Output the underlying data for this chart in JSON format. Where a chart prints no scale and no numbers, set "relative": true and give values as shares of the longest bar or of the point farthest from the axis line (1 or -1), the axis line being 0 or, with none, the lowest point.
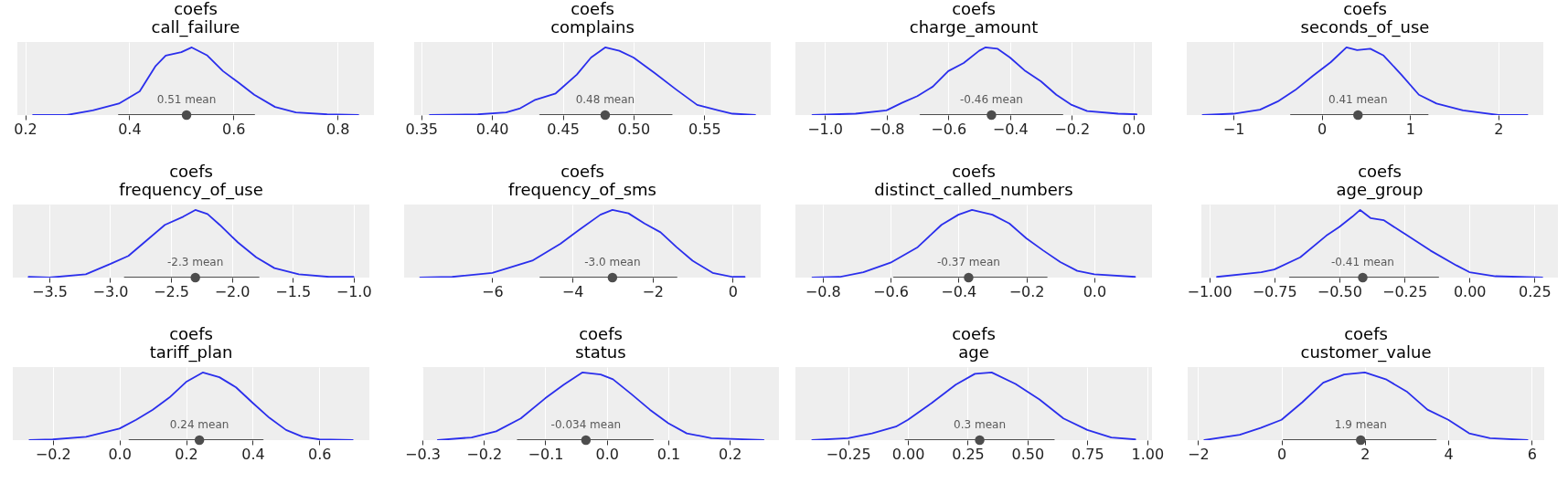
{
  "chart_data": [
    {
      "type": "line",
      "title": "coefs",
      "subtitle": "call_failure",
      "relative": true,
      "grid": "x",
      "tick_labels": "x",
      "xlim": [
        0.185,
        0.87
      ],
      "xticks": [
        0.2,
        0.4,
        0.6,
        0.8
      ],
      "series": [
        {
          "color": "#2a2eec",
          "x": [
            0.215,
            0.28,
            0.33,
            0.38,
            0.42,
            0.45,
            0.47,
            0.5,
            0.52,
            0.55,
            0.58,
            0.61,
            0.64,
            0.68,
            0.72,
            0.78,
            0.84
          ],
          "values": [
            0,
            0,
            0.07,
            0.17,
            0.35,
            0.72,
            0.88,
            0.93,
            1,
            0.88,
            0.65,
            0.48,
            0.3,
            0.12,
            0.04,
            0.01,
            0
          ]
        },
        {
          "type": "line",
          "color": "#4d4d4d",
          "x": [
            0.38,
            0.64
          ],
          "values": [
            0,
            0
          ]
        },
        {
          "type": "scatter",
          "marker": "circle",
          "color": "#4d4d4d",
          "x": [
            0.51
          ],
          "values": [
            0
          ]
        }
      ],
      "annotations": [
        {
          "text": "0.51 mean",
          "x": 0.51,
          "y": 0
        }
      ]
    },
    {
      "type": "line",
      "title": "coefs",
      "subtitle": "complains",
      "relative": true,
      "grid": "x",
      "tick_labels": "x",
      "xlim": [
        0.345,
        0.597
      ],
      "xticks": [
        {
          "value": 0.35,
          "label": "0.35"
        },
        {
          "value": 0.4,
          "label": "0.40"
        },
        {
          "value": 0.45,
          "label": "0.45"
        },
        {
          "value": 0.5,
          "label": "0.50"
        },
        {
          "value": 0.55,
          "label": "0.55"
        }
      ],
      "series": [
        {
          "color": "#2a2eec",
          "x": [
            0.356,
            0.39,
            0.41,
            0.42,
            0.43,
            0.445,
            0.46,
            0.47,
            0.48,
            0.49,
            0.5,
            0.515,
            0.53,
            0.545,
            0.56,
            0.57,
            0.586
          ],
          "values": [
            0,
            0.01,
            0.04,
            0.1,
            0.22,
            0.32,
            0.6,
            0.85,
            1,
            0.95,
            0.85,
            0.62,
            0.38,
            0.15,
            0.07,
            0.02,
            0
          ]
        },
        {
          "type": "line",
          "color": "#4d4d4d",
          "x": [
            0.434,
            0.527
          ],
          "values": [
            0,
            0
          ]
        },
        {
          "type": "scatter",
          "marker": "circle",
          "color": "#4d4d4d",
          "x": [
            0.48
          ],
          "values": [
            0
          ]
        }
      ],
      "annotations": [
        {
          "text": "0.48 mean",
          "x": 0.48,
          "y": 0
        }
      ]
    },
    {
      "type": "line",
      "title": "coefs",
      "subtitle": "charge_amount",
      "relative": true,
      "grid": "x",
      "tick_labels": "x",
      "xlim": [
        -1.095,
        0.06
      ],
      "xticks": [
        {
          "value": -1,
          "label": "−1.0"
        },
        {
          "value": -0.8,
          "label": "−0.8"
        },
        {
          "value": -0.6,
          "label": "−0.6"
        },
        {
          "value": -0.4,
          "label": "−0.4"
        },
        {
          "value": -0.2,
          "label": "−0.2"
        },
        {
          "value": 0,
          "label": "0.0"
        }
      ],
      "series": [
        {
          "color": "#2a2eec",
          "x": [
            -1.04,
            -0.9,
            -0.8,
            -0.75,
            -0.7,
            -0.65,
            -0.6,
            -0.55,
            -0.5,
            -0.48,
            -0.44,
            -0.4,
            -0.35,
            -0.3,
            -0.25,
            -0.2,
            -0.15,
            -0.05,
            0.01
          ],
          "values": [
            0,
            0.02,
            0.07,
            0.18,
            0.28,
            0.42,
            0.65,
            0.77,
            0.95,
            1,
            0.98,
            0.85,
            0.65,
            0.5,
            0.3,
            0.15,
            0.06,
            0.02,
            0.01
          ]
        },
        {
          "type": "line",
          "color": "#4d4d4d",
          "x": [
            -0.69,
            -0.23
          ],
          "values": [
            0,
            0
          ]
        },
        {
          "type": "scatter",
          "marker": "circle",
          "color": "#4d4d4d",
          "x": [
            -0.46
          ],
          "values": [
            0
          ]
        }
      ],
      "annotations": [
        {
          "text": "-0.46 mean",
          "x": -0.46,
          "y": 0
        }
      ]
    },
    {
      "type": "line",
      "title": "coefs",
      "subtitle": "seconds_of_use",
      "relative": true,
      "grid": "x",
      "tick_labels": "x",
      "xlim": [
        -1.53,
        2.51
      ],
      "xticks": [
        {
          "value": -1,
          "label": "−1"
        },
        0,
        1,
        2
      ],
      "series": [
        {
          "color": "#2a2eec",
          "x": [
            -1.35,
            -1,
            -0.7,
            -0.5,
            -0.3,
            -0.1,
            0.1,
            0.28,
            0.4,
            0.55,
            0.7,
            0.9,
            1.1,
            1.3,
            1.6,
            2,
            2.33
          ],
          "values": [
            0,
            0.02,
            0.08,
            0.2,
            0.37,
            0.58,
            0.78,
            1,
            0.96,
            0.98,
            0.88,
            0.6,
            0.3,
            0.17,
            0.07,
            0,
            0
          ]
        },
        {
          "type": "line",
          "color": "#4d4d4d",
          "x": [
            -0.35,
            1.2
          ],
          "values": [
            0,
            0
          ]
        },
        {
          "type": "scatter",
          "marker": "circle",
          "color": "#4d4d4d",
          "x": [
            0.41
          ],
          "values": [
            0
          ]
        }
      ],
      "annotations": [
        {
          "text": "0.41 mean",
          "x": 0.41,
          "y": 0
        }
      ]
    },
    {
      "type": "line",
      "title": "coefs",
      "subtitle": "frequency_of_use",
      "relative": true,
      "grid": "x",
      "tick_labels": "x",
      "xlim": [
        -3.8,
        -0.87
      ],
      "xticks": [
        {
          "value": -3.5,
          "label": "−3.5"
        },
        {
          "value": -3,
          "label": "−3.0"
        },
        {
          "value": -2.5,
          "label": "−2.5"
        },
        {
          "value": -2,
          "label": "−2.0"
        },
        {
          "value": -1.5,
          "label": "−1.5"
        },
        {
          "value": -1,
          "label": "−1.0"
        }
      ],
      "series": [
        {
          "color": "#2a2eec",
          "x": [
            -3.67,
            -3.5,
            -3.2,
            -3,
            -2.85,
            -2.7,
            -2.55,
            -2.4,
            -2.3,
            -2.2,
            -2.1,
            -1.95,
            -1.8,
            -1.65,
            -1.45,
            -1.2,
            -1
          ],
          "values": [
            0.01,
            0,
            0.05,
            0.2,
            0.32,
            0.55,
            0.78,
            0.9,
            1,
            0.94,
            0.78,
            0.52,
            0.3,
            0.14,
            0.05,
            0.01,
            0.01
          ]
        },
        {
          "type": "line",
          "color": "#4d4d4d",
          "x": [
            -2.88,
            -1.78
          ],
          "values": [
            0,
            0
          ]
        },
        {
          "type": "scatter",
          "marker": "circle",
          "color": "#4d4d4d",
          "x": [
            -2.3
          ],
          "values": [
            0
          ]
        }
      ],
      "annotations": [
        {
          "text": "-2.3 mean",
          "x": -2.3,
          "y": 0
        }
      ]
    },
    {
      "type": "line",
      "title": "coefs",
      "subtitle": "frequency_of_sms",
      "relative": true,
      "grid": "x",
      "tick_labels": "x",
      "xlim": [
        -8.2,
        0.7
      ],
      "xticks": [
        {
          "value": -6,
          "label": "−6"
        },
        {
          "value": -4,
          "label": "−4"
        },
        {
          "value": -2,
          "label": "−2"
        },
        0
      ],
      "series": [
        {
          "color": "#2a2eec",
          "x": [
            -7.8,
            -7,
            -6,
            -5,
            -4.3,
            -3.8,
            -3.3,
            -3,
            -2.6,
            -2.2,
            -1.8,
            -1.4,
            -1,
            -0.5,
            0,
            0.3
          ],
          "values": [
            0,
            0.01,
            0.07,
            0.25,
            0.5,
            0.72,
            0.93,
            1,
            0.95,
            0.8,
            0.67,
            0.45,
            0.25,
            0.07,
            0.01,
            0.01
          ]
        },
        {
          "type": "line",
          "color": "#4d4d4d",
          "x": [
            -4.8,
            -1.4
          ],
          "values": [
            0,
            0
          ]
        },
        {
          "type": "scatter",
          "marker": "circle",
          "color": "#4d4d4d",
          "x": [
            -3
          ],
          "values": [
            0
          ]
        }
      ],
      "annotations": [
        {
          "text": "-3.0 mean",
          "x": -3,
          "y": 0
        }
      ]
    },
    {
      "type": "line",
      "title": "coefs",
      "subtitle": "distinct_called_numbers",
      "relative": true,
      "grid": "x",
      "tick_labels": "x",
      "xlim": [
        -0.88,
        0.17
      ],
      "xticks": [
        {
          "value": -0.8,
          "label": "−0.8"
        },
        {
          "value": -0.6,
          "label": "−0.6"
        },
        {
          "value": -0.4,
          "label": "−0.4"
        },
        {
          "value": -0.2,
          "label": "−0.2"
        },
        {
          "value": 0,
          "label": "0.0"
        }
      ],
      "series": [
        {
          "color": "#2a2eec",
          "x": [
            -0.83,
            -0.75,
            -0.68,
            -0.6,
            -0.52,
            -0.45,
            -0.4,
            -0.36,
            -0.3,
            -0.25,
            -0.2,
            -0.15,
            -0.1,
            -0.05,
            0,
            0.12
          ],
          "values": [
            0,
            0.01,
            0.08,
            0.22,
            0.45,
            0.78,
            0.93,
            1,
            0.93,
            0.8,
            0.58,
            0.4,
            0.23,
            0.1,
            0.05,
            0.01
          ]
        },
        {
          "type": "line",
          "color": "#4d4d4d",
          "x": [
            -0.59,
            -0.14
          ],
          "values": [
            0,
            0
          ]
        },
        {
          "type": "scatter",
          "marker": "circle",
          "color": "#4d4d4d",
          "x": [
            -0.37
          ],
          "values": [
            0
          ]
        }
      ],
      "annotations": [
        {
          "text": "-0.37 mean",
          "x": -0.37,
          "y": 0
        }
      ]
    },
    {
      "type": "line",
      "title": "coefs",
      "subtitle": "age_group",
      "relative": true,
      "grid": "x",
      "tick_labels": "x",
      "xlim": [
        -1.03,
        0.34
      ],
      "xticks": [
        {
          "value": -1,
          "label": "−1.00"
        },
        {
          "value": -0.75,
          "label": "−0.75"
        },
        {
          "value": -0.5,
          "label": "−0.50"
        },
        {
          "value": -0.25,
          "label": "−0.25"
        },
        {
          "value": 0,
          "label": "0.00"
        },
        0.25
      ],
      "series": [
        {
          "color": "#2a2eec",
          "x": [
            -0.97,
            -0.8,
            -0.75,
            -0.65,
            -0.55,
            -0.5,
            -0.45,
            -0.42,
            -0.38,
            -0.33,
            -0.25,
            -0.15,
            -0.05,
            0,
            0.1,
            0.28
          ],
          "values": [
            0.01,
            0.08,
            0.12,
            0.3,
            0.62,
            0.75,
            0.9,
            1,
            0.88,
            0.85,
            0.65,
            0.4,
            0.18,
            0.08,
            0.02,
            0
          ]
        },
        {
          "type": "line",
          "color": "#4d4d4d",
          "x": [
            -0.69,
            -0.12
          ],
          "values": [
            0,
            0
          ]
        },
        {
          "type": "scatter",
          "marker": "circle",
          "color": "#4d4d4d",
          "x": [
            -0.41
          ],
          "values": [
            0
          ]
        }
      ],
      "annotations": [
        {
          "text": "-0.41 mean",
          "x": -0.41,
          "y": 0
        }
      ]
    },
    {
      "type": "line",
      "title": "coefs",
      "subtitle": "tariff_plan",
      "relative": true,
      "grid": "x",
      "tick_labels": "x",
      "xlim": [
        -0.32,
        0.75
      ],
      "xticks": [
        {
          "value": -0.2,
          "label": "−0.2"
        },
        {
          "value": 0,
          "label": "0.0"
        },
        0.2,
        0.4,
        0.6
      ],
      "series": [
        {
          "color": "#2a2eec",
          "x": [
            -0.27,
            -0.2,
            -0.1,
            0,
            0.05,
            0.1,
            0.15,
            0.2,
            0.25,
            0.3,
            0.35,
            0.4,
            0.45,
            0.5,
            0.55,
            0.6,
            0.7
          ],
          "values": [
            0,
            0.01,
            0.05,
            0.17,
            0.3,
            0.45,
            0.63,
            0.86,
            1,
            0.93,
            0.78,
            0.55,
            0.33,
            0.15,
            0.05,
            0.01,
            0
          ]
        },
        {
          "type": "line",
          "color": "#4d4d4d",
          "x": [
            0.03,
            0.43
          ],
          "values": [
            0,
            0
          ]
        },
        {
          "type": "scatter",
          "marker": "circle",
          "color": "#4d4d4d",
          "x": [
            0.24
          ],
          "values": [
            0
          ]
        }
      ],
      "annotations": [
        {
          "text": "0.24 mean",
          "x": 0.24,
          "y": 0
        }
      ]
    },
    {
      "type": "line",
      "title": "coefs",
      "subtitle": "status",
      "relative": true,
      "grid": "x",
      "tick_labels": "x",
      "xlim": [
        -0.3,
        0.28
      ],
      "xticks": [
        {
          "value": -0.3,
          "label": "−0.3"
        },
        {
          "value": -0.2,
          "label": "−0.2"
        },
        {
          "value": -0.1,
          "label": "−0.1"
        },
        {
          "value": 0,
          "label": "0.0"
        },
        0.1,
        0.2
      ],
      "series": [
        {
          "color": "#2a2eec",
          "x": [
            -0.275,
            -0.22,
            -0.18,
            -0.14,
            -0.1,
            -0.07,
            -0.04,
            -0.01,
            0.01,
            0.04,
            0.07,
            0.1,
            0.13,
            0.17,
            0.255
          ],
          "values": [
            0,
            0.04,
            0.13,
            0.32,
            0.62,
            0.82,
            1,
            0.97,
            0.9,
            0.68,
            0.45,
            0.25,
            0.1,
            0.03,
            0
          ]
        },
        {
          "type": "line",
          "color": "#4d4d4d",
          "x": [
            -0.145,
            0.075
          ],
          "values": [
            0,
            0
          ]
        },
        {
          "type": "scatter",
          "marker": "circle",
          "color": "#4d4d4d",
          "x": [
            -0.034
          ],
          "values": [
            0
          ]
        }
      ],
      "annotations": [
        {
          "text": "-0.034 mean",
          "x": -0.034,
          "y": 0
        }
      ]
    },
    {
      "type": "line",
      "title": "coefs",
      "subtitle": "age",
      "relative": true,
      "grid": "x",
      "tick_labels": "x",
      "xlim": [
        -0.47,
        1.02
      ],
      "xticks": [
        {
          "value": -0.25,
          "label": "−0.25"
        },
        {
          "value": 0,
          "label": "0.00"
        },
        0.25,
        {
          "value": 0.5,
          "label": "0.50"
        },
        0.75,
        {
          "value": 1,
          "label": "1.00"
        }
      ],
      "series": [
        {
          "color": "#2a2eec",
          "x": [
            -0.4,
            -0.25,
            -0.15,
            -0.05,
            0,
            0.1,
            0.2,
            0.28,
            0.35,
            0.45,
            0.55,
            0.65,
            0.75,
            0.85,
            0.95
          ],
          "values": [
            0,
            0.03,
            0.1,
            0.2,
            0.3,
            0.55,
            0.82,
            0.98,
            1,
            0.83,
            0.6,
            0.32,
            0.15,
            0.04,
            0.01
          ]
        },
        {
          "type": "line",
          "color": "#4d4d4d",
          "x": [
            -0.01,
            0.61
          ],
          "values": [
            0,
            0
          ]
        },
        {
          "type": "scatter",
          "marker": "circle",
          "color": "#4d4d4d",
          "x": [
            0.3
          ],
          "values": [
            0
          ]
        }
      ],
      "annotations": [
        {
          "text": "0.3 mean",
          "x": 0.3,
          "y": 0
        }
      ]
    },
    {
      "type": "line",
      "title": "coefs",
      "subtitle": "customer_value",
      "relative": true,
      "grid": "x",
      "tick_labels": "x",
      "xlim": [
        -2.25,
        6.3
      ],
      "xticks": [
        {
          "value": -2,
          "label": "−2"
        },
        0,
        2,
        4,
        6
      ],
      "series": [
        {
          "color": "#2a2eec",
          "x": [
            -1.85,
            -1,
            -0.5,
            0,
            0.5,
            1,
            1.5,
            2,
            2.5,
            3,
            3.5,
            4,
            4.5,
            5,
            5.9
          ],
          "values": [
            0,
            0.08,
            0.18,
            0.3,
            0.56,
            0.85,
            0.97,
            1,
            0.9,
            0.72,
            0.45,
            0.3,
            0.1,
            0.03,
            0
          ]
        },
        {
          "type": "line",
          "color": "#4d4d4d",
          "x": [
            0.05,
            3.7
          ],
          "values": [
            0,
            0
          ]
        },
        {
          "type": "scatter",
          "marker": "circle",
          "color": "#4d4d4d",
          "x": [
            1.9
          ],
          "values": [
            0
          ]
        }
      ],
      "annotations": [
        {
          "text": "1.9 mean",
          "x": 1.9,
          "y": 0
        }
      ]
    }
  ]
}
